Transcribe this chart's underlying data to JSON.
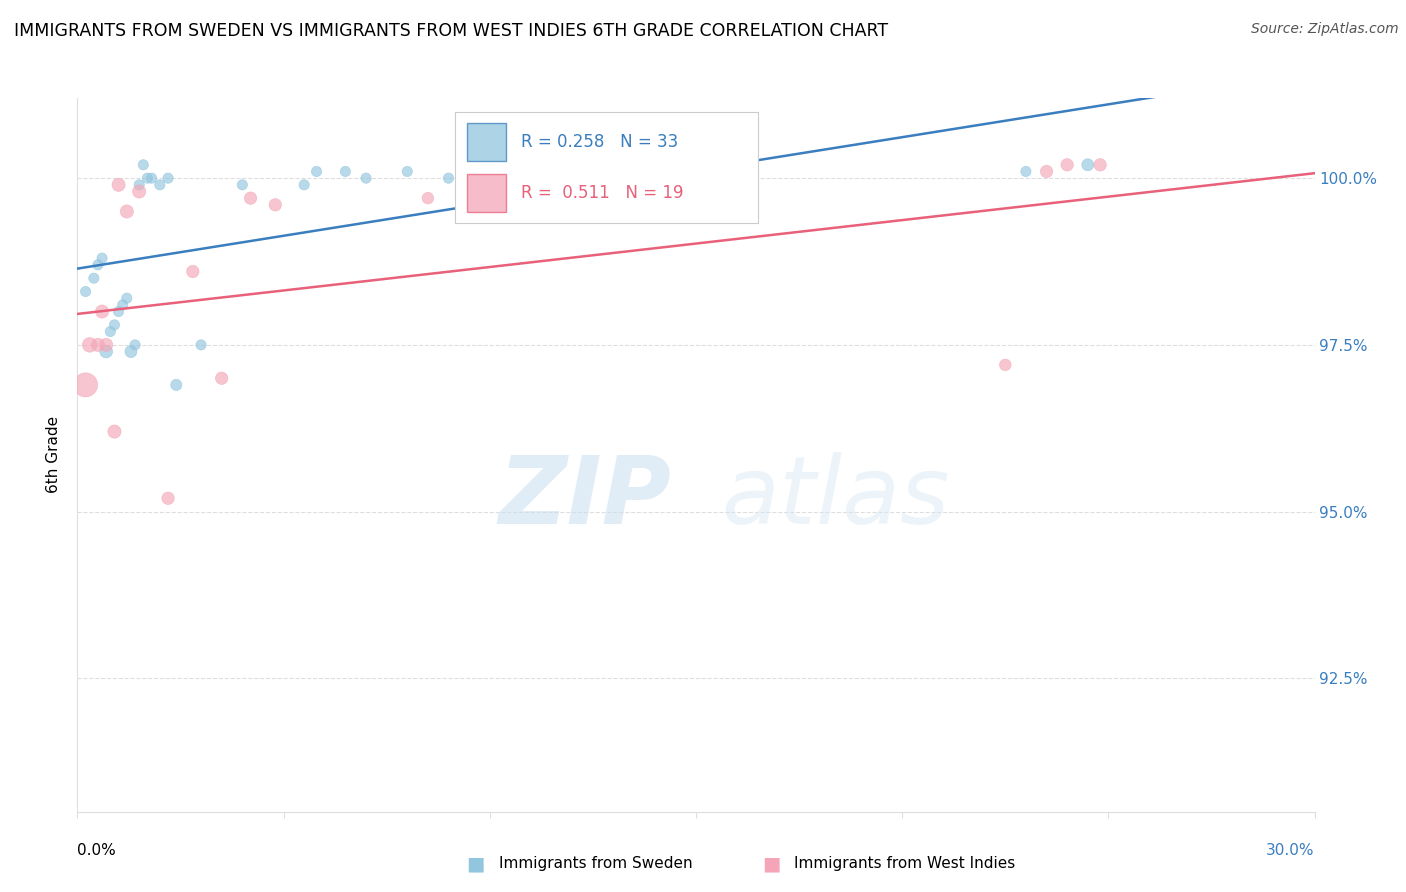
{
  "title": "IMMIGRANTS FROM SWEDEN VS IMMIGRANTS FROM WEST INDIES 6TH GRADE CORRELATION CHART",
  "source": "Source: ZipAtlas.com",
  "ylabel": "6th Grade",
  "y_tick_labels": [
    "100.0%",
    "97.5%",
    "95.0%",
    "92.5%"
  ],
  "y_tick_values": [
    1.0,
    0.975,
    0.95,
    0.925
  ],
  "x_range": [
    0.0,
    30.0
  ],
  "y_range": [
    0.905,
    1.012
  ],
  "legend_r_blue": "0.258",
  "legend_n_blue": "33",
  "legend_r_pink": "0.511",
  "legend_n_pink": "19",
  "blue_color": "#92c5de",
  "pink_color": "#f4a6b8",
  "blue_line_color": "#3a7ebf",
  "pink_line_color": "#e8607a",
  "sweden_x": [
    0.2,
    0.4,
    0.5,
    0.6,
    0.7,
    0.8,
    0.9,
    1.0,
    1.1,
    1.2,
    1.3,
    1.4,
    1.5,
    1.6,
    1.7,
    1.8,
    2.0,
    2.2,
    2.4,
    3.0,
    4.0,
    5.5,
    5.8,
    6.5,
    7.0,
    8.0,
    9.0,
    9.5,
    10.0,
    11.0,
    14.0,
    23.0,
    24.5
  ],
  "sweden_y": [
    0.983,
    0.985,
    0.987,
    0.988,
    0.974,
    0.977,
    0.978,
    0.98,
    0.981,
    0.982,
    0.974,
    0.975,
    0.999,
    1.002,
    1.0,
    1.0,
    0.999,
    1.0,
    0.969,
    0.975,
    0.999,
    0.999,
    1.001,
    1.001,
    1.0,
    1.001,
    1.0,
    1.001,
    1.001,
    1.0,
    1.0,
    1.001,
    1.002
  ],
  "sweden_sizes": [
    55,
    55,
    55,
    55,
    85,
    55,
    55,
    55,
    55,
    55,
    75,
    55,
    55,
    55,
    55,
    55,
    55,
    55,
    65,
    55,
    55,
    55,
    55,
    55,
    55,
    55,
    55,
    55,
    55,
    55,
    55,
    55,
    75
  ],
  "westindies_x": [
    0.2,
    0.3,
    0.5,
    0.6,
    0.7,
    0.9,
    1.0,
    1.2,
    1.5,
    2.2,
    2.8,
    3.5,
    4.2,
    4.8,
    8.5,
    22.5,
    23.5,
    24.0,
    24.8
  ],
  "westindies_y": [
    0.969,
    0.975,
    0.975,
    0.98,
    0.975,
    0.962,
    0.999,
    0.995,
    0.998,
    0.952,
    0.986,
    0.97,
    0.997,
    0.996,
    0.997,
    0.972,
    1.001,
    1.002,
    1.002
  ],
  "westindies_sizes": [
    300,
    110,
    90,
    90,
    90,
    90,
    90,
    90,
    90,
    80,
    80,
    80,
    80,
    80,
    70,
    70,
    80,
    80,
    80
  ],
  "watermark_zip": "ZIP",
  "watermark_atlas": "atlas",
  "background_color": "#ffffff",
  "grid_color": "#dedede",
  "spine_color": "#dedede"
}
